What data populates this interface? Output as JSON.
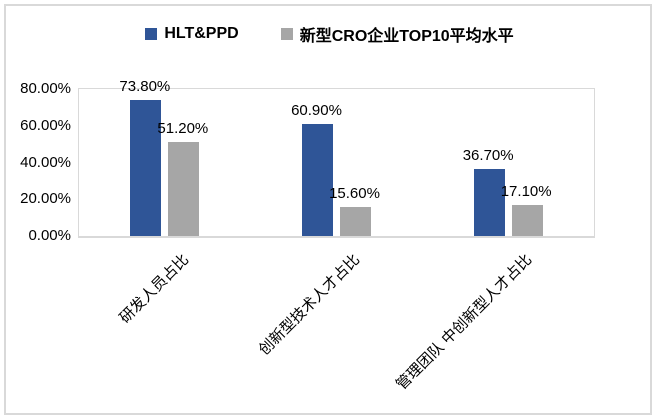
{
  "chart_data": {
    "type": "bar",
    "title": "",
    "categories": [
      "研发人员占比",
      "创新型技术人才占比",
      "管理团队 中创新型人才占比"
    ],
    "series": [
      {
        "name": "HLT&PPD",
        "color": "#2F5597",
        "values": [
          73.8,
          60.9,
          36.7
        ],
        "data_labels": [
          "73.80%",
          "60.90%",
          "36.70%"
        ]
      },
      {
        "name": "新型CRO企业TOP10平均水平",
        "color": "#A6A6A6",
        "values": [
          51.2,
          15.6,
          17.1
        ],
        "data_labels": [
          "51.20%",
          "15.60%",
          "17.10%"
        ]
      }
    ],
    "xlabel": "",
    "ylabel": "",
    "ylim": [
      0,
      80
    ],
    "y_ticks": [
      "80.00%",
      "60.00%",
      "40.00%",
      "20.00%",
      "0.00%"
    ],
    "grid": false,
    "legend_position": "top",
    "frame_color": "#D9D9D9",
    "text_color": "#000000"
  }
}
